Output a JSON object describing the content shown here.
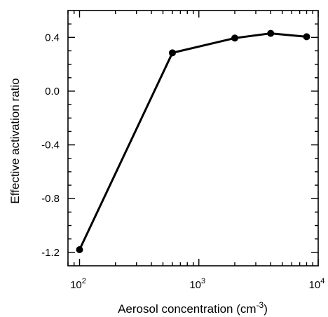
{
  "chart_data": {
    "type": "line",
    "xlabel": "Aerosol concentration (cm",
    "xlabel_unit_exp": "-3",
    "xlabel_close": ")",
    "ylabel": "Effective activation ratio",
    "x_scale": "log",
    "xlim": [
      80,
      10000
    ],
    "ylim": [
      -1.3,
      0.6
    ],
    "x_ticks": [
      {
        "base": "10",
        "exp": "2",
        "value": 100
      },
      {
        "base": "10",
        "exp": "3",
        "value": 1000
      },
      {
        "base": "10",
        "exp": "4",
        "value": 10000
      }
    ],
    "y_ticks": [
      {
        "label": "0.4",
        "value": 0.4
      },
      {
        "label": "0.0",
        "value": 0.0
      },
      {
        "label": "-0.4",
        "value": -0.4
      },
      {
        "label": "-0.8",
        "value": -0.8
      },
      {
        "label": "-1.2",
        "value": -1.2
      }
    ],
    "y_minor_step": 0.1,
    "grid": false,
    "series": [
      {
        "x": [
          100,
          600,
          2000,
          4000,
          8000
        ],
        "y": [
          -1.18,
          0.285,
          0.395,
          0.43,
          0.405
        ]
      }
    ]
  }
}
